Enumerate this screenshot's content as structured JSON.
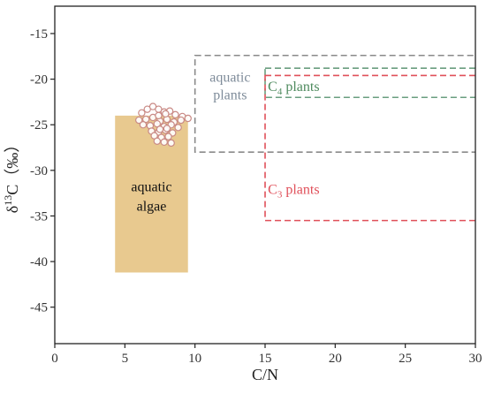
{
  "chart_data": {
    "type": "scatter",
    "xlabel": "C/N",
    "ylabel": {
      "prefix": "δ",
      "sup": "13",
      "main": "C（‰）"
    },
    "xlim": [
      0,
      30
    ],
    "ylim": [
      -49,
      -12
    ],
    "xticks": [
      0,
      5,
      10,
      15,
      20,
      25,
      30
    ],
    "yticks": [
      -15,
      -20,
      -25,
      -30,
      -35,
      -40,
      -45
    ],
    "grid": false,
    "regions": [
      {
        "id": "aquatic-algae",
        "style": "filled",
        "color": "#e8c98f",
        "x": [
          4.3,
          9.5
        ],
        "y": [
          -41.2,
          -24
        ],
        "label_lines": [
          "aquatic",
          "algae"
        ],
        "label_color": "#111111"
      },
      {
        "id": "aquatic-plants",
        "style": "dashed",
        "color": "#8a8a8a",
        "x": [
          10,
          30.5
        ],
        "y": [
          -28,
          -17.4
        ],
        "label_lines": [
          "aquatic",
          "plants"
        ],
        "label_color": "#7f8c9a"
      },
      {
        "id": "c4-plants",
        "style": "dashed",
        "color": "#6a9e7f",
        "x": [
          15,
          30.5
        ],
        "y": [
          -22,
          -18.8
        ],
        "label_main": "C",
        "label_sub": "4",
        "label_rest": " plants",
        "label_color": "#4e8a5e"
      },
      {
        "id": "c3-plants",
        "style": "dashed",
        "color": "#e0505a",
        "x": [
          15,
          30.5
        ],
        "y": [
          -35.5,
          -19.6
        ],
        "label_main": "C",
        "label_sub": "3",
        "label_rest": " plants",
        "label_color": "#e0505a"
      }
    ],
    "points": {
      "color": "#c98a85",
      "x": [
        6.2,
        6.6,
        7.0,
        7.4,
        7.8,
        8.2,
        8.6,
        9.1,
        6.0,
        6.5,
        7.0,
        7.5,
        8.0,
        8.5,
        9.0,
        9.5,
        6.3,
        6.8,
        7.3,
        7.8,
        8.3,
        8.8,
        6.9,
        7.4,
        7.9,
        8.4,
        7.1,
        7.6,
        8.1,
        7.3,
        7.8,
        8.3,
        7.5,
        8.0,
        7.4,
        7.9
      ],
      "y": [
        -23.7,
        -23.3,
        -23.0,
        -23.3,
        -23.6,
        -23.5,
        -23.9,
        -24.1,
        -24.5,
        -24.4,
        -24.2,
        -24.6,
        -24.4,
        -24.7,
        -24.5,
        -24.3,
        -25.0,
        -25.1,
        -24.9,
        -25.2,
        -25.0,
        -25.3,
        -25.7,
        -25.8,
        -25.6,
        -25.9,
        -26.2,
        -26.4,
        -26.3,
        -26.8,
        -26.9,
        -27.0,
        -25.5,
        -25.4,
        -24.0,
        -23.8
      ]
    }
  }
}
